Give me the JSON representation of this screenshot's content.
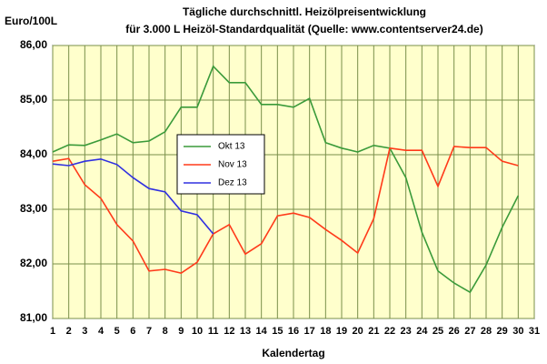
{
  "chart_data": {
    "type": "line",
    "title": "Tägliche durchschnittl. Heizölpreisentwicklung",
    "subtitle": "für 3.000 L Heizöl-Standardqualität (Quelle: www.contentserver24.de)",
    "y_label": "Euro/100L",
    "x_label": "Kalendertag",
    "x": [
      1,
      2,
      3,
      4,
      5,
      6,
      7,
      8,
      9,
      10,
      11,
      12,
      13,
      14,
      15,
      16,
      17,
      18,
      19,
      20,
      21,
      22,
      23,
      24,
      25,
      26,
      27,
      28,
      29,
      30,
      31
    ],
    "xlim": [
      1,
      31
    ],
    "xticks": [
      1,
      2,
      3,
      4,
      5,
      6,
      7,
      8,
      9,
      10,
      11,
      12,
      13,
      14,
      15,
      16,
      17,
      18,
      19,
      20,
      21,
      22,
      23,
      24,
      25,
      26,
      27,
      28,
      29,
      30,
      31
    ],
    "ylim": [
      81,
      86
    ],
    "yticks": [
      {
        "value": 81,
        "label": "81,00"
      },
      {
        "value": 82,
        "label": "82,00"
      },
      {
        "value": 83,
        "label": "83,00"
      },
      {
        "value": 84,
        "label": "84,00"
      },
      {
        "value": 85,
        "label": "85,00"
      },
      {
        "value": 86,
        "label": "86,00"
      }
    ],
    "grid": true,
    "series": [
      {
        "name": "Okt 13",
        "color": "#3a9a3a",
        "values": [
          84.05,
          84.18,
          84.17,
          84.27,
          84.38,
          84.22,
          84.25,
          84.42,
          84.87,
          84.87,
          85.62,
          85.32,
          85.32,
          84.92,
          84.92,
          84.87,
          85.03,
          84.22,
          84.12,
          84.05,
          84.17,
          84.12,
          83.58,
          82.58,
          81.87,
          81.65,
          81.48,
          81.98,
          82.67,
          83.25,
          null
        ]
      },
      {
        "name": "Nov 13",
        "color": "#ff3a1a",
        "values": [
          83.88,
          83.93,
          83.45,
          83.2,
          82.72,
          82.42,
          81.87,
          81.9,
          81.83,
          82.03,
          82.55,
          82.72,
          82.18,
          82.37,
          82.88,
          82.93,
          82.85,
          82.63,
          82.43,
          82.2,
          82.83,
          84.12,
          84.08,
          84.08,
          83.42,
          84.15,
          84.13,
          84.13,
          83.88,
          83.8,
          null
        ]
      },
      {
        "name": "Dez 13",
        "color": "#3030e0",
        "values": [
          83.83,
          83.8,
          83.88,
          83.92,
          83.82,
          83.58,
          83.38,
          83.32,
          82.97,
          82.9,
          82.55,
          null,
          null,
          null,
          null,
          null,
          null,
          null,
          null,
          null,
          null,
          null,
          null,
          null,
          null,
          null,
          null,
          null,
          null,
          null,
          null
        ]
      }
    ]
  }
}
